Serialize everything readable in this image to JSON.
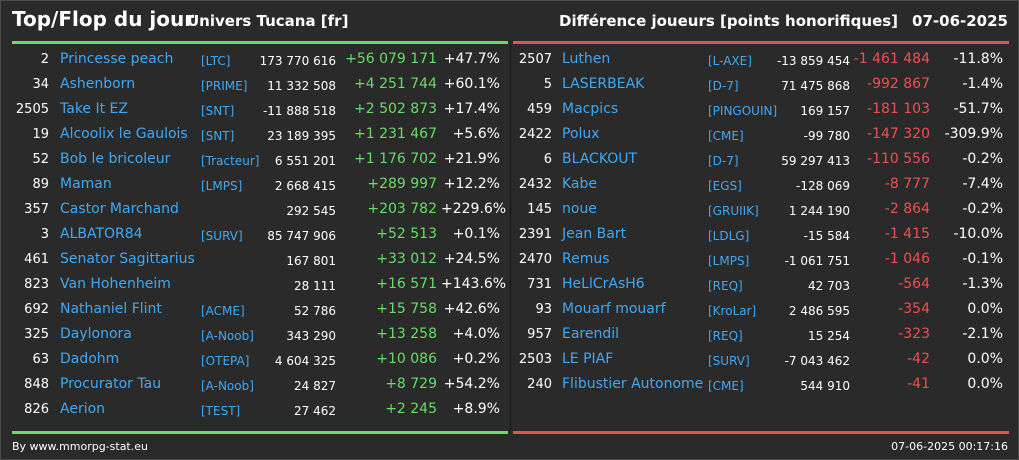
{
  "header": {
    "title": "Top/Flop du jour",
    "universe": "Univers Tucana [fr]",
    "metric": "Différence joueurs [points honorifiques]",
    "date": "07-06-2025"
  },
  "colors": {
    "gain": "#66dd66",
    "loss": "#ee5050",
    "link": "#3fa9f5"
  },
  "top": [
    {
      "rank": "2",
      "name": "Princesse peach",
      "tag": "[LTC]",
      "points": "173 770 616",
      "diff": "+56 079 171",
      "pct": "+47.7%"
    },
    {
      "rank": "34",
      "name": "Ashenborn",
      "tag": "[PRIME]",
      "points": "11 332 508",
      "diff": "+4 251 744",
      "pct": "+60.1%"
    },
    {
      "rank": "2505",
      "name": "Take It EZ",
      "tag": "[SNT]",
      "points": "-11 888 518",
      "diff": "+2 502 873",
      "pct": "+17.4%"
    },
    {
      "rank": "19",
      "name": "Alcoolix le Gaulois",
      "tag": "[SNT]",
      "points": "23 189 395",
      "diff": "+1 231 467",
      "pct": "+5.6%"
    },
    {
      "rank": "52",
      "name": "Bob le bricoleur",
      "tag": "[Tracteur]",
      "points": "6 551 201",
      "diff": "+1 176 702",
      "pct": "+21.9%"
    },
    {
      "rank": "89",
      "name": "Maman",
      "tag": "[LMPS]",
      "points": "2 668 415",
      "diff": "+289 997",
      "pct": "+12.2%"
    },
    {
      "rank": "357",
      "name": "Castor Marchand",
      "tag": "",
      "points": "292 545",
      "diff": "+203 782",
      "pct": "+229.6%"
    },
    {
      "rank": "3",
      "name": "ALBATOR84",
      "tag": "[SURV]",
      "points": "85 747 906",
      "diff": "+52 513",
      "pct": "+0.1%"
    },
    {
      "rank": "461",
      "name": "Senator Sagittarius",
      "tag": "",
      "points": "167 801",
      "diff": "+33 012",
      "pct": "+24.5%"
    },
    {
      "rank": "823",
      "name": "Van Hohenheim",
      "tag": "",
      "points": "28 111",
      "diff": "+16 571",
      "pct": "+143.6%"
    },
    {
      "rank": "692",
      "name": "Nathaniel Flint",
      "tag": "[ACME]",
      "points": "52 786",
      "diff": "+15 758",
      "pct": "+42.6%"
    },
    {
      "rank": "325",
      "name": "Daylonora",
      "tag": "[A-Noob]",
      "points": "343 290",
      "diff": "+13 258",
      "pct": "+4.0%"
    },
    {
      "rank": "63",
      "name": "Dadohm",
      "tag": "[OTEPA]",
      "points": "4 604 325",
      "diff": "+10 086",
      "pct": "+0.2%"
    },
    {
      "rank": "848",
      "name": "Procurator Tau",
      "tag": "[A-Noob]",
      "points": "24 827",
      "diff": "+8 729",
      "pct": "+54.2%"
    },
    {
      "rank": "826",
      "name": "Aerion",
      "tag": "[TEST]",
      "points": "27 462",
      "diff": "+2 245",
      "pct": "+8.9%"
    }
  ],
  "flop": [
    {
      "rank": "2507",
      "name": "Luthen",
      "tag": "[L-AXE]",
      "points": "-13 859 454",
      "diff": "-1 461 484",
      "pct": "-11.8%"
    },
    {
      "rank": "5",
      "name": "LASERBEAK",
      "tag": "[D-7]",
      "points": "71 475 868",
      "diff": "-992 867",
      "pct": "-1.4%"
    },
    {
      "rank": "459",
      "name": "Macpics",
      "tag": "[PINGOUIN]",
      "points": "169 157",
      "diff": "-181 103",
      "pct": "-51.7%"
    },
    {
      "rank": "2422",
      "name": "Polux",
      "tag": "[CME]",
      "points": "-99 780",
      "diff": "-147 320",
      "pct": "-309.9%"
    },
    {
      "rank": "6",
      "name": "BLACKOUT",
      "tag": "[D-7]",
      "points": "59 297 413",
      "diff": "-110 556",
      "pct": "-0.2%"
    },
    {
      "rank": "2432",
      "name": "Kabe",
      "tag": "[EGS]",
      "points": "-128 069",
      "diff": "-8 777",
      "pct": "-7.4%"
    },
    {
      "rank": "145",
      "name": "noue",
      "tag": "[GRUIIK]",
      "points": "1 244 190",
      "diff": "-2 864",
      "pct": "-0.2%"
    },
    {
      "rank": "2391",
      "name": "Jean Bart",
      "tag": "[LDLG]",
      "points": "-15 584",
      "diff": "-1 415",
      "pct": "-10.0%"
    },
    {
      "rank": "2470",
      "name": "Remus",
      "tag": "[LMPS]",
      "points": "-1 061 751",
      "diff": "-1 046",
      "pct": "-0.1%"
    },
    {
      "rank": "731",
      "name": "HeLlCrAsH6",
      "tag": "[REQ]",
      "points": "42 703",
      "diff": "-564",
      "pct": "-1.3%"
    },
    {
      "rank": "93",
      "name": "Mouarf mouarf",
      "tag": "[KroLar]",
      "points": "2 486 595",
      "diff": "-354",
      "pct": "0.0%"
    },
    {
      "rank": "957",
      "name": "Earendil",
      "tag": "[REQ]",
      "points": "15 254",
      "diff": "-323",
      "pct": "-2.1%"
    },
    {
      "rank": "2503",
      "name": "LE PIAF",
      "tag": "[SURV]",
      "points": "-7 043 462",
      "diff": "-42",
      "pct": "0.0%"
    },
    {
      "rank": "240",
      "name": "Flibustier Autonome",
      "tag": "[CME]",
      "points": "544 910",
      "diff": "-41",
      "pct": "0.0%"
    }
  ],
  "footer": {
    "source": "By www.mmorpg-stat.eu",
    "timestamp": "07-06-2025 00:17:16"
  }
}
